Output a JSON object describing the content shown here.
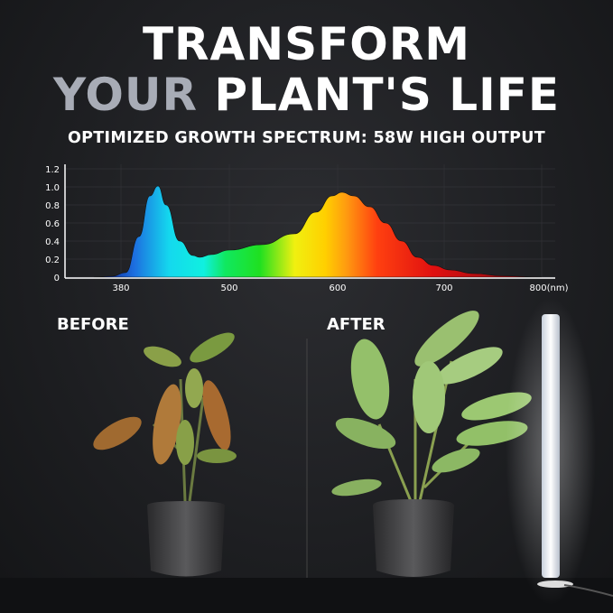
{
  "headline": {
    "line1": "TRANSFORM",
    "line2_gray": "YOUR",
    "line2_white": "PLANT'S LIFE"
  },
  "subtitle": "OPTIMIZED GROWTH SPECTRUM: 58W HIGH OUTPUT",
  "chart_data": {
    "type": "area",
    "title": "",
    "xlabel": "",
    "ylabel": "",
    "x_ticks": [
      "380",
      "500",
      "600",
      "700",
      "800(nm)"
    ],
    "y_ticks": [
      "0",
      "0.2",
      "0.4",
      "0.6",
      "0.8",
      "1.0",
      "1.2"
    ],
    "ylim": [
      0,
      1.2
    ],
    "grid": true,
    "x": [
      350,
      370,
      385,
      400,
      412,
      421,
      430,
      445,
      460,
      467,
      480,
      500,
      530,
      560,
      580,
      595,
      604,
      615,
      630,
      645,
      660,
      675,
      690,
      706,
      730,
      760,
      800
    ],
    "values": [
      0,
      0.01,
      0.05,
      0.45,
      0.9,
      1.01,
      0.8,
      0.4,
      0.24,
      0.22,
      0.25,
      0.3,
      0.36,
      0.48,
      0.72,
      0.9,
      0.94,
      0.9,
      0.78,
      0.6,
      0.4,
      0.22,
      0.13,
      0.08,
      0.04,
      0.015,
      0
    ]
  },
  "labels": {
    "before": "BEFORE",
    "after": "AFTER"
  }
}
